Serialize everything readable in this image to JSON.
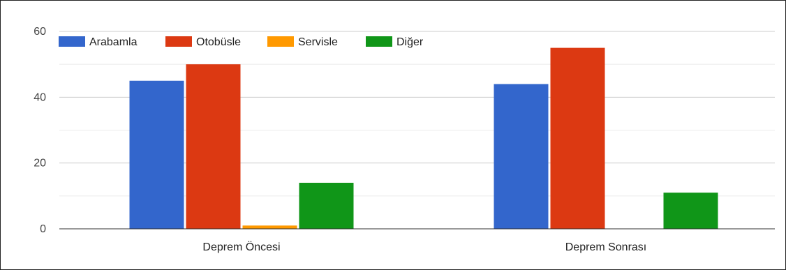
{
  "chart_data": {
    "type": "bar",
    "categories": [
      "Deprem Öncesi",
      "Deprem Sonrası"
    ],
    "series": [
      {
        "name": "Arabamla",
        "color": "#3366cc",
        "values": [
          45,
          44
        ]
      },
      {
        "name": "Otobüsle",
        "color": "#dc3912",
        "values": [
          50,
          55
        ]
      },
      {
        "name": "Servisle",
        "color": "#ff9900",
        "values": [
          1,
          0
        ]
      },
      {
        "name": "Diğer",
        "color": "#109618",
        "values": [
          14,
          11
        ]
      }
    ],
    "ylim": [
      0,
      60
    ],
    "yticks": [
      "0",
      "20",
      "40",
      "60"
    ],
    "grid": true,
    "legend": "top-left",
    "title": "",
    "xlabel": "",
    "ylabel": ""
  }
}
